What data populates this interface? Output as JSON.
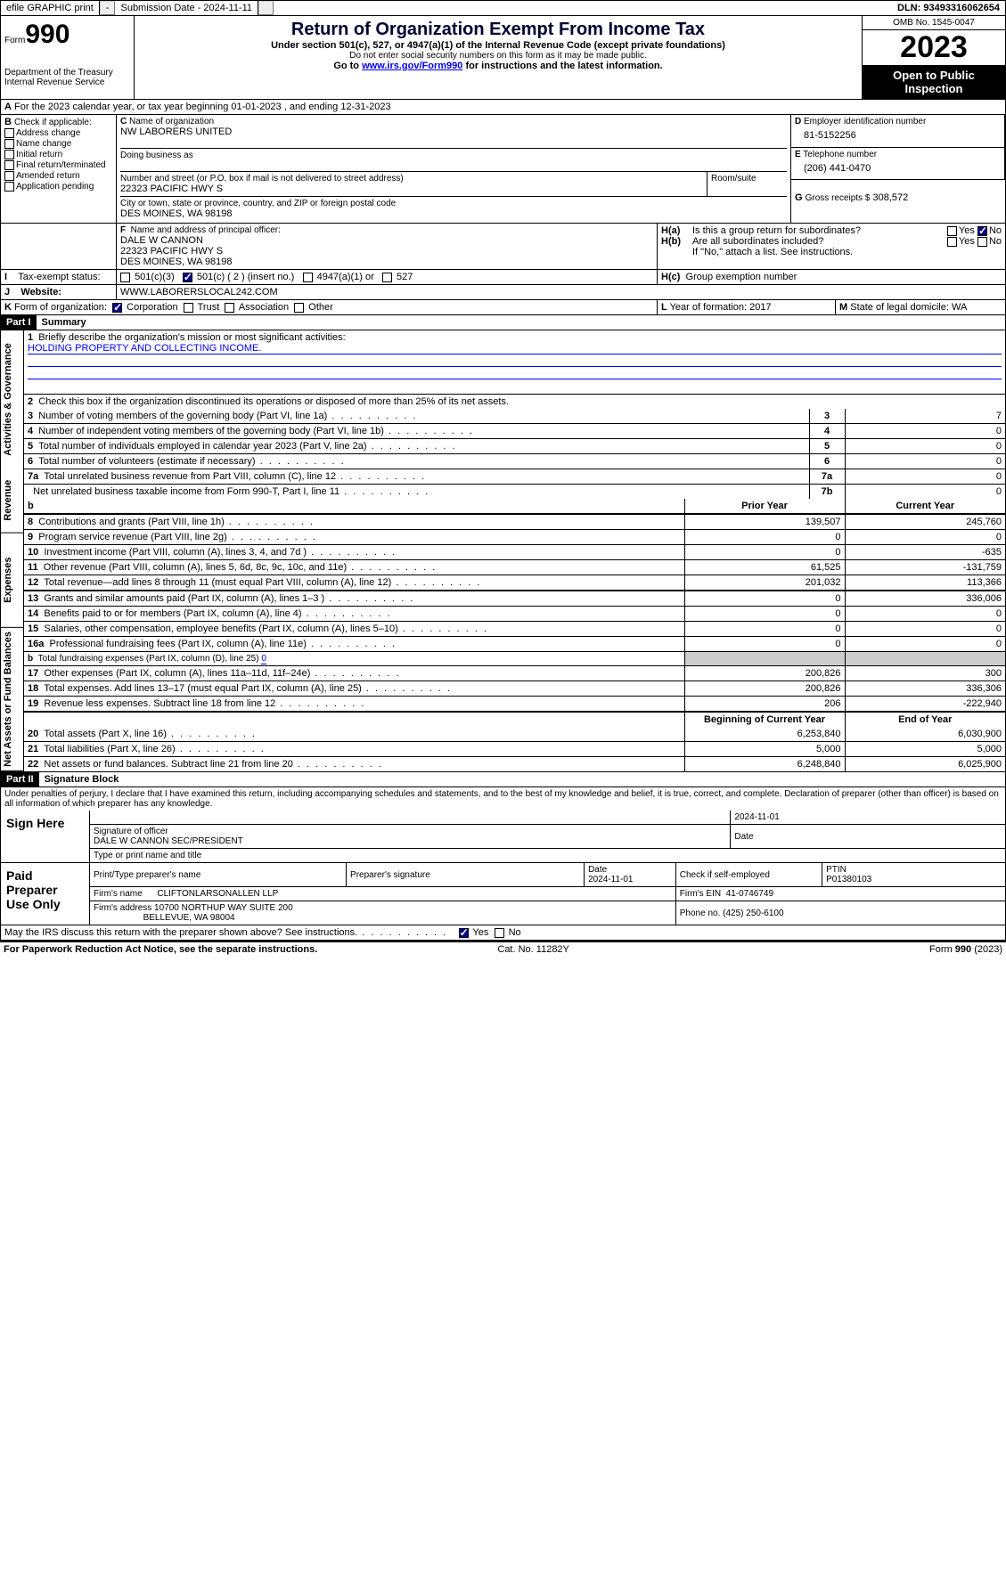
{
  "topbar": {
    "efile": "efile GRAPHIC print",
    "submission": "Submission Date - 2024-11-11",
    "dln": "DLN: 93493316062654"
  },
  "header": {
    "form_word": "Form",
    "form_num": "990",
    "title": "Return of Organization Exempt From Income Tax",
    "sub": "Under section 501(c), 527, or 4947(a)(1) of the Internal Revenue Code (except private foundations)",
    "ssn": "Do not enter social security numbers on this form as it may be made public.",
    "goto": "Go to ",
    "goto_link": "www.irs.gov/Form990",
    "goto_after": " for instructions and the latest information.",
    "dept": "Department of the Treasury Internal Revenue Service",
    "omb": "OMB No. 1545-0047",
    "year": "2023",
    "open": "Open to Public Inspection"
  },
  "A": "For the 2023 calendar year, or tax year beginning 01-01-2023    , and ending 12-31-2023",
  "B": {
    "lbl": "Check if applicable:",
    "opts": [
      "Address change",
      "Name change",
      "Initial return",
      "Final return/terminated",
      "Amended return",
      "Application pending"
    ]
  },
  "C": {
    "name_lbl": "Name of organization",
    "name": "NW LABORERS UNITED",
    "dba_lbl": "Doing business as",
    "addr_lbl": "Number and street (or P.O. box if mail is not delivered to street address)",
    "addr": "22323 PACIFIC HWY S",
    "room_lbl": "Room/suite",
    "city_lbl": "City or town, state or province, country, and ZIP or foreign postal code",
    "city": "DES MOINES, WA  98198"
  },
  "D": {
    "lbl": "Employer identification number",
    "val": "81-5152256"
  },
  "E": {
    "lbl": "Telephone number",
    "val": "(206) 441-0470"
  },
  "G": {
    "lbl": "Gross receipts $",
    "val": "308,572"
  },
  "F": {
    "lbl": "Name and address of principal officer:",
    "name": "DALE W CANNON",
    "addr1": "22323 PACIFIC HWY S",
    "addr2": "DES MOINES, WA  98198"
  },
  "H": {
    "a": "Is this a group return for subordinates?",
    "b": "Are all subordinates included?",
    "note": "If \"No,\" attach a list. See instructions.",
    "c": "Group exemption number",
    "yes": "Yes",
    "no": "No"
  },
  "I": {
    "lbl": "Tax-exempt status:",
    "o1": "501(c)(3)",
    "o2": "501(c) ( 2 ) (insert no.)",
    "o3": "4947(a)(1) or",
    "o4": "527"
  },
  "J": {
    "lbl": "Website:",
    "val": "WWW.LABORERSLOCAL242.COM"
  },
  "K": {
    "lbl": "Form of organization:",
    "o1": "Corporation",
    "o2": "Trust",
    "o3": "Association",
    "o4": "Other"
  },
  "L": {
    "lbl": "Year of formation:",
    "val": "2017"
  },
  "M": {
    "lbl": "State of legal domicile:",
    "val": "WA"
  },
  "part1": {
    "hdr": "Part I",
    "title": "Summary"
  },
  "s1": {
    "lbl": "Briefly describe the organization's mission or most significant activities:",
    "val": "HOLDING PROPERTY AND COLLECTING INCOME."
  },
  "s2": "Check this box      if the organization discontinued its operations or disposed of more than 25% of its net assets.",
  "lines_gov": [
    {
      "n": "3",
      "t": "Number of voting members of the governing body (Part VI, line 1a)",
      "c": "3",
      "v": "7"
    },
    {
      "n": "4",
      "t": "Number of independent voting members of the governing body (Part VI, line 1b)",
      "c": "4",
      "v": "0"
    },
    {
      "n": "5",
      "t": "Total number of individuals employed in calendar year 2023 (Part V, line 2a)",
      "c": "5",
      "v": "0"
    },
    {
      "n": "6",
      "t": "Total number of volunteers (estimate if necessary)",
      "c": "6",
      "v": "0"
    },
    {
      "n": "7a",
      "t": "Total unrelated business revenue from Part VIII, column (C), line 12",
      "c": "7a",
      "v": "0"
    },
    {
      "n": "",
      "t": "Net unrelated business taxable income from Form 990-T, Part I, line 11",
      "c": "7b",
      "v": "0"
    }
  ],
  "hdr_bp": {
    "b": "b",
    "p": "Prior Year",
    "c": "Current Year"
  },
  "lines_rev": [
    {
      "n": "8",
      "t": "Contributions and grants (Part VIII, line 1h)",
      "p": "139,507",
      "c": "245,760"
    },
    {
      "n": "9",
      "t": "Program service revenue (Part VIII, line 2g)",
      "p": "0",
      "c": "0"
    },
    {
      "n": "10",
      "t": "Investment income (Part VIII, column (A), lines 3, 4, and 7d )",
      "p": "0",
      "c": "-635"
    },
    {
      "n": "11",
      "t": "Other revenue (Part VIII, column (A), lines 5, 6d, 8c, 9c, 10c, and 11e)",
      "p": "61,525",
      "c": "-131,759"
    },
    {
      "n": "12",
      "t": "Total revenue—add lines 8 through 11 (must equal Part VIII, column (A), line 12)",
      "p": "201,032",
      "c": "113,366"
    }
  ],
  "lines_exp": [
    {
      "n": "13",
      "t": "Grants and similar amounts paid (Part IX, column (A), lines 1–3 )",
      "p": "0",
      "c": "336,006"
    },
    {
      "n": "14",
      "t": "Benefits paid to or for members (Part IX, column (A), line 4)",
      "p": "0",
      "c": "0"
    },
    {
      "n": "15",
      "t": "Salaries, other compensation, employee benefits (Part IX, column (A), lines 5–10)",
      "p": "0",
      "c": "0"
    },
    {
      "n": "16a",
      "t": "Professional fundraising fees (Part IX, column (A), line 11e)",
      "p": "0",
      "c": "0"
    },
    {
      "n": "b",
      "t": "Total fundraising expenses (Part IX, column (D), line 25) ",
      "v": "0",
      "shade": true
    },
    {
      "n": "17",
      "t": "Other expenses (Part IX, column (A), lines 11a–11d, 11f–24e)",
      "p": "200,826",
      "c": "300"
    },
    {
      "n": "18",
      "t": "Total expenses. Add lines 13–17 (must equal Part IX, column (A), line 25)",
      "p": "200,826",
      "c": "336,306"
    },
    {
      "n": "19",
      "t": "Revenue less expenses. Subtract line 18 from line 12",
      "p": "206",
      "c": "-222,940"
    }
  ],
  "hdr_na": {
    "p": "Beginning of Current Year",
    "c": "End of Year"
  },
  "lines_na": [
    {
      "n": "20",
      "t": "Total assets (Part X, line 16)",
      "p": "6,253,840",
      "c": "6,030,900"
    },
    {
      "n": "21",
      "t": "Total liabilities (Part X, line 26)",
      "p": "5,000",
      "c": "5,000"
    },
    {
      "n": "22",
      "t": "Net assets or fund balances. Subtract line 21 from line 20",
      "p": "6,248,840",
      "c": "6,025,900"
    }
  ],
  "part2": {
    "hdr": "Part II",
    "title": "Signature Block"
  },
  "penalties": "Under penalties of perjury, I declare that I have examined this return, including accompanying schedules and statements, and to the best of my knowledge and belief, it is true, correct, and complete. Declaration of preparer (other than officer) is based on all information of which preparer has any knowledge.",
  "sign": {
    "here": "Sign Here",
    "date": "2024-11-01",
    "sig_lbl": "Signature of officer",
    "officer": "DALE W CANNON  SEC/PRESIDENT",
    "type_lbl": "Type or print name and title",
    "date_lbl": "Date"
  },
  "paid": {
    "lbl": "Paid Preparer Use Only",
    "h1": "Print/Type preparer's name",
    "h2": "Preparer's signature",
    "h3": "Date",
    "date": "2024-11-01",
    "h4": "Check       if self-employed",
    "h5": "PTIN",
    "ptin": "P01380103",
    "firm_lbl": "Firm's name",
    "firm": "CLIFTONLARSONALLEN LLP",
    "ein_lbl": "Firm's EIN",
    "ein": "41-0746749",
    "addr_lbl": "Firm's address",
    "addr1": "10700 NORTHUP WAY SUITE 200",
    "addr2": "BELLEVUE, WA  98004",
    "phone_lbl": "Phone no.",
    "phone": "(425) 250-6100"
  },
  "discuss": {
    "q": "May the IRS discuss this return with the preparer shown above? See instructions.",
    "yes": "Yes",
    "no": "No"
  },
  "footer": {
    "l": "For Paperwork Reduction Act Notice, see the separate instructions.",
    "m": "Cat. No. 11282Y",
    "r": "Form 990 (2023)"
  },
  "vtabs": {
    "gov": "Activities & Governance",
    "rev": "Revenue",
    "exp": "Expenses",
    "na": "Net Assets or Fund Balances"
  }
}
